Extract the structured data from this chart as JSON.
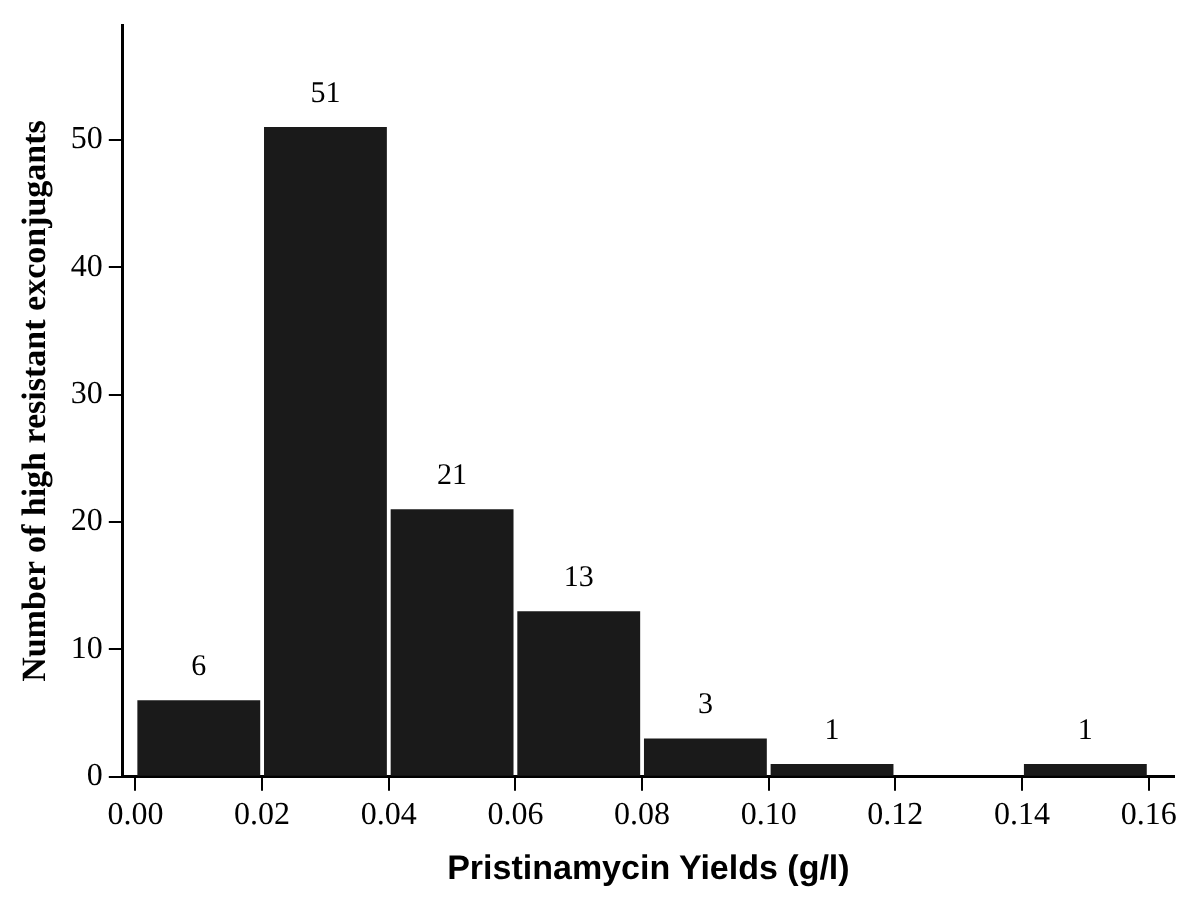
{
  "chart_data": {
    "type": "histogram",
    "xlabel": "Pristinamycin Yields (g/l)",
    "ylabel": "Number of high resistant exconjugants",
    "bins": [
      0,
      0.02,
      0.04,
      0.06,
      0.08,
      0.1,
      0.12,
      0.14,
      0.16
    ],
    "values": [
      6,
      51,
      21,
      13,
      3,
      1,
      0,
      1
    ],
    "value_labels": [
      "6",
      "51",
      "21",
      "13",
      "3",
      "1",
      null,
      "1"
    ],
    "color": "#1a1a1a",
    "xlim": [
      -0.002,
      0.164
    ],
    "ylim": [
      0,
      59
    ],
    "xticks": [
      {
        "value": 0,
        "label": "0.00"
      },
      {
        "value": 0.02,
        "label": "0.02"
      },
      {
        "value": 0.04,
        "label": "0.04"
      },
      {
        "value": 0.06,
        "label": "0.06"
      },
      {
        "value": 0.08,
        "label": "0.08"
      },
      {
        "value": 0.1,
        "label": "0.10"
      },
      {
        "value": 0.12,
        "label": "0.12"
      },
      {
        "value": 0.14,
        "label": "0.14"
      },
      {
        "value": 0.16,
        "label": "0.16"
      }
    ],
    "yticks": [
      0,
      10,
      20,
      30,
      40,
      50
    ],
    "grid": false,
    "legend": false
  }
}
